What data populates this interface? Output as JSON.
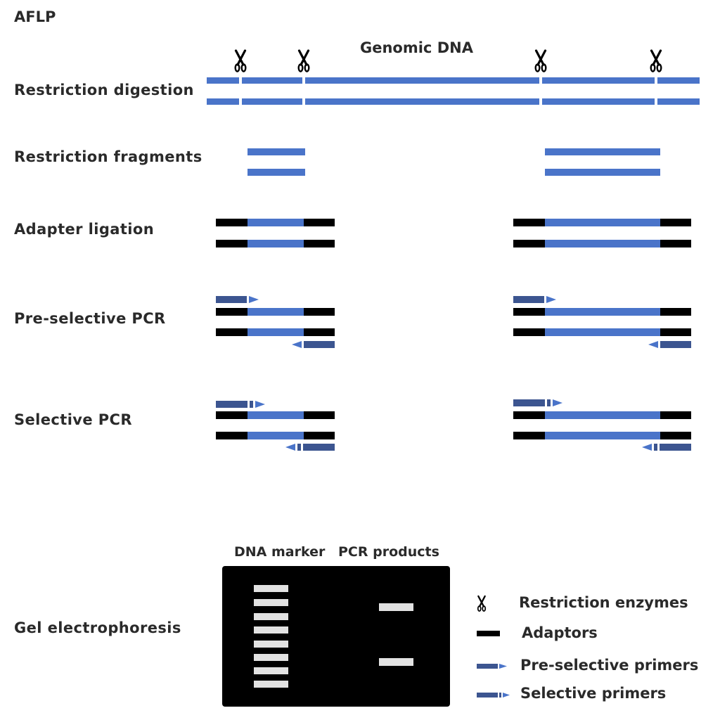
{
  "title": "AFLP",
  "genomic_label": "Genomic DNA",
  "steps": {
    "digestion": "Restriction digestion",
    "fragments": "Restriction fragments",
    "ligation": "Adapter ligation",
    "preselective": "Pre-selective PCR",
    "selective": "Selective PCR",
    "gel": "Gel electrophoresis"
  },
  "gel": {
    "marker_label": "DNA marker",
    "products_label": "PCR products",
    "marker_bands": 8,
    "product_bands": 2
  },
  "legend": {
    "enzymes": "Restriction enzymes",
    "adaptors": "Adaptors",
    "preselective_primers": "Pre-selective primers",
    "selective_primers": "Selective primers"
  },
  "colors": {
    "dna": "#4a74c9",
    "primer": "#3c5590",
    "adaptor": "#000000",
    "gel": "#000000",
    "band": "#e2e2e2"
  },
  "icons": {
    "enzyme": "scissors-icon"
  }
}
